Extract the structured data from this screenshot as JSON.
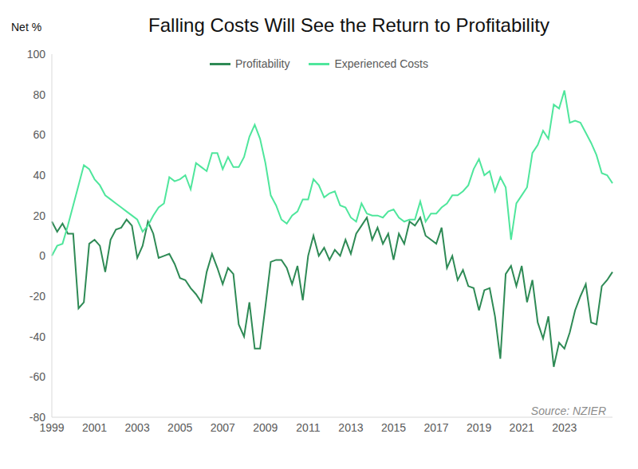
{
  "chart_data": {
    "type": "line",
    "title": "Falling Costs Will See the Return to Profitability",
    "y_label": "Net %",
    "annotation": "Source: NZIER",
    "categories": [
      "1999",
      null,
      null,
      null,
      null,
      null,
      null,
      null,
      "2001",
      null,
      null,
      null,
      null,
      null,
      null,
      null,
      "2003",
      null,
      null,
      null,
      null,
      null,
      null,
      null,
      "2005",
      null,
      null,
      null,
      null,
      null,
      null,
      null,
      "2007",
      null,
      null,
      null,
      null,
      null,
      null,
      null,
      "2009",
      null,
      null,
      null,
      null,
      null,
      null,
      null,
      "2011",
      null,
      null,
      null,
      null,
      null,
      null,
      null,
      "2013",
      null,
      null,
      null,
      null,
      null,
      null,
      null,
      "2015",
      null,
      null,
      null,
      null,
      null,
      null,
      null,
      "2017",
      null,
      null,
      null,
      null,
      null,
      null,
      null,
      "2019",
      null,
      null,
      null,
      null,
      null,
      null,
      null,
      "2021",
      null,
      null,
      null,
      null,
      null,
      null,
      null,
      "2023",
      null,
      null,
      null,
      null,
      null,
      null,
      null,
      null,
      null
    ],
    "series": [
      {
        "name": "Profitability",
        "color": "#2e8a55",
        "values": [
          17,
          12,
          16,
          11,
          11,
          -26,
          -23,
          6,
          8,
          5,
          -8,
          8,
          13,
          14,
          18,
          15,
          -1,
          5,
          17,
          11,
          -1,
          0,
          1,
          -4,
          -11,
          -12,
          -16,
          -19,
          -23,
          -8,
          1,
          -6,
          -14,
          -6,
          -9,
          -34,
          -40,
          -23,
          -46,
          -46,
          -25,
          -3,
          -2,
          -2,
          -6,
          -14,
          -5,
          -22,
          0,
          10,
          0,
          4,
          -2,
          3,
          0,
          8,
          1,
          11,
          15,
          19,
          8,
          14,
          6,
          11,
          -2,
          11,
          6,
          17,
          15,
          19,
          10,
          8,
          6,
          14,
          -6,
          0,
          -12,
          -7,
          -15,
          -16,
          -27,
          -17,
          -16,
          -30,
          -51,
          -9,
          -5,
          -15,
          -5,
          -23,
          -12,
          -33,
          -41,
          -30,
          -55,
          -43,
          -46,
          -38,
          -27,
          -20,
          -14,
          -33,
          -34,
          -15,
          -12,
          -8
        ]
      },
      {
        "name": "Experienced Costs",
        "color": "#4fe69c",
        "values": [
          0,
          5,
          6,
          15,
          25,
          35,
          45,
          43,
          38,
          35,
          30,
          28,
          26,
          24,
          22,
          20,
          18,
          12,
          15,
          20,
          24,
          26,
          39,
          37,
          38,
          40,
          33,
          46,
          44,
          42,
          51,
          51,
          43,
          49,
          44,
          44,
          49,
          59,
          65,
          58,
          46,
          30,
          25,
          18,
          16,
          20,
          22,
          28,
          28,
          38,
          35,
          29,
          31,
          32,
          25,
          24,
          19,
          17,
          26,
          21,
          20,
          20,
          19,
          22,
          23,
          19,
          17,
          18,
          18,
          27,
          17,
          21,
          21,
          24,
          26,
          30,
          30,
          32,
          35,
          43,
          48,
          40,
          42,
          32,
          39,
          34,
          8,
          26,
          30,
          34,
          51,
          55,
          62,
          58,
          75,
          73,
          82,
          66,
          67,
          66,
          61,
          56,
          50,
          41,
          40,
          36
        ]
      }
    ],
    "ylim": [
      -80,
      100
    ],
    "yticks": [
      -80,
      -60,
      -40,
      -20,
      0,
      20,
      40,
      60,
      80,
      100
    ],
    "grid": false,
    "legend": "top"
  }
}
